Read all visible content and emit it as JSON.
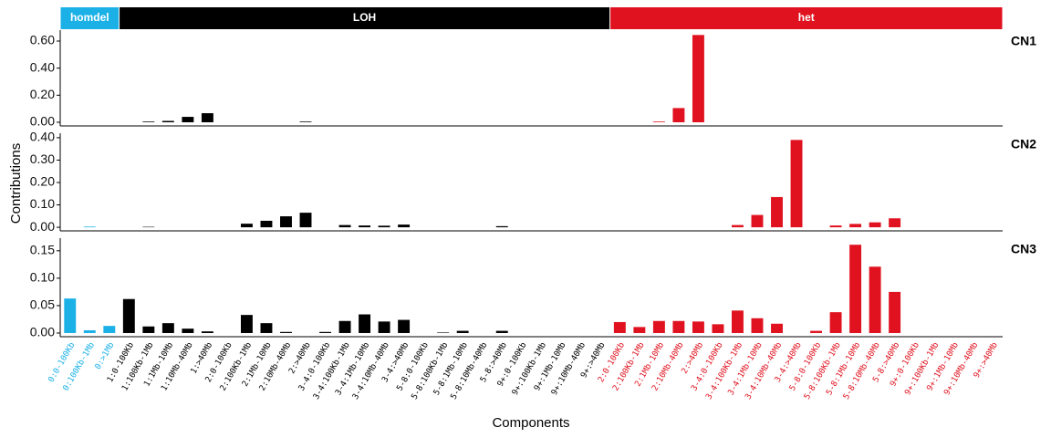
{
  "chart_data": {
    "type": "bar",
    "x_label": "Components",
    "y_label": "Contributions",
    "groups": [
      {
        "name": "homdel",
        "color": "#1bb1e7",
        "categories": [
          "0:0-100Kb",
          "0:100Kb-1Mb",
          "0:>1Mb"
        ]
      },
      {
        "name": "LOH",
        "color": "#000000",
        "categories": [
          "1:0-100Kb",
          "1:100Kb-1Mb",
          "1:1Mb-10Mb",
          "1:10Mb-40Mb",
          "1:>40Mb",
          "2:0-100Kb",
          "2:100Kb-1Mb",
          "2:1Mb-10Mb",
          "2:10Mb-40Mb",
          "2:>40Mb",
          "3-4:0-100Kb",
          "3-4:100Kb-1Mb",
          "3-4:1Mb-10Mb",
          "3-4:10Mb-40Mb",
          "3-4:>40Mb",
          "5-8:0-100Kb",
          "5-8:100Kb-1Mb",
          "5-8:1Mb-10Mb",
          "5-8:10Mb-40Mb",
          "5-8:>40Mb",
          "9+:0-100Kb",
          "9+:100Kb-1Mb",
          "9+:1Mb-10Mb",
          "9+:10Mb-40Mb",
          "9+:>40Mb"
        ]
      },
      {
        "name": "het",
        "color": "#e0121f",
        "categories": [
          "2:0-100Kb",
          "2:100Kb-1Mb",
          "2:1Mb-10Mb",
          "2:10Mb-40Mb",
          "2:>40Mb",
          "3-4:0-100Kb",
          "3-4:100Kb-1Mb",
          "3-4:1Mb-10Mb",
          "3-4:10Mb-40Mb",
          "3-4:>40Mb",
          "5-8:0-100Kb",
          "5-8:100Kb-1Mb",
          "5-8:1Mb-10Mb",
          "5-8:10Mb-40Mb",
          "5-8:>40Mb",
          "9+:0-100Kb",
          "9+:100Kb-1Mb",
          "9+:1Mb-10Mb",
          "9+:10Mb-40Mb",
          "9+:>40Mb"
        ]
      }
    ],
    "panels": [
      {
        "name": "CN1",
        "ylim": [
          -0.027,
          0.681
        ],
        "yticks": [
          {
            "value": 0,
            "label": "0.00"
          },
          {
            "value": 0.2,
            "label": "0.20"
          },
          {
            "value": 0.4,
            "label": "0.40"
          },
          {
            "value": 0.6,
            "label": "0.60"
          }
        ],
        "values": [
          0,
          0,
          0,
          0,
          0.005,
          0.01,
          0.04,
          0.067,
          0,
          0,
          0,
          0,
          0.005,
          0,
          0,
          0,
          0,
          0,
          0,
          0,
          0,
          0,
          0,
          0,
          0,
          0,
          0,
          0,
          0,
          0,
          0.005,
          0.105,
          0.645,
          0,
          0,
          0,
          0,
          0,
          0,
          0,
          0,
          0,
          0,
          0,
          0,
          0,
          0,
          0
        ]
      },
      {
        "name": "CN2",
        "ylim": [
          -0.016,
          0.42
        ],
        "yticks": [
          {
            "value": 0,
            "label": "0.00"
          },
          {
            "value": 0.1,
            "label": "0.10"
          },
          {
            "value": 0.2,
            "label": "0.20"
          },
          {
            "value": 0.3,
            "label": "0.30"
          },
          {
            "value": 0.4,
            "label": "0.40"
          }
        ],
        "values": [
          0,
          0.003,
          0,
          0,
          0.002,
          0,
          0,
          0,
          0,
          0.016,
          0.029,
          0.049,
          0.065,
          0,
          0.01,
          0.008,
          0.007,
          0.012,
          0,
          0,
          0,
          0,
          0.005,
          0,
          0,
          0,
          0,
          0,
          0,
          0,
          0,
          0,
          0,
          0,
          0.01,
          0.055,
          0.135,
          0.39,
          0,
          0.008,
          0.015,
          0.022,
          0.04,
          0,
          0,
          0,
          0,
          0
        ]
      },
      {
        "name": "CN3",
        "ylim": [
          -0.0067,
          0.173
        ],
        "yticks": [
          {
            "value": 0,
            "label": "0.00"
          },
          {
            "value": 0.05,
            "label": "0.05"
          },
          {
            "value": 0.1,
            "label": "0.10"
          },
          {
            "value": 0.15,
            "label": "0.15"
          }
        ],
        "values": [
          0.063,
          0.005,
          0.013,
          0.062,
          0.012,
          0.018,
          0.008,
          0.003,
          0,
          0.033,
          0.018,
          0.002,
          0,
          0.002,
          0.022,
          0.034,
          0.021,
          0.024,
          0,
          0.001,
          0.004,
          0,
          0.004,
          0,
          0,
          0,
          0,
          0,
          0.02,
          0.011,
          0.022,
          0.022,
          0.021,
          0.016,
          0.041,
          0.027,
          0.017,
          0,
          0.004,
          0.038,
          0.161,
          0.121,
          0.075,
          0,
          0,
          0,
          0,
          0
        ]
      }
    ]
  }
}
